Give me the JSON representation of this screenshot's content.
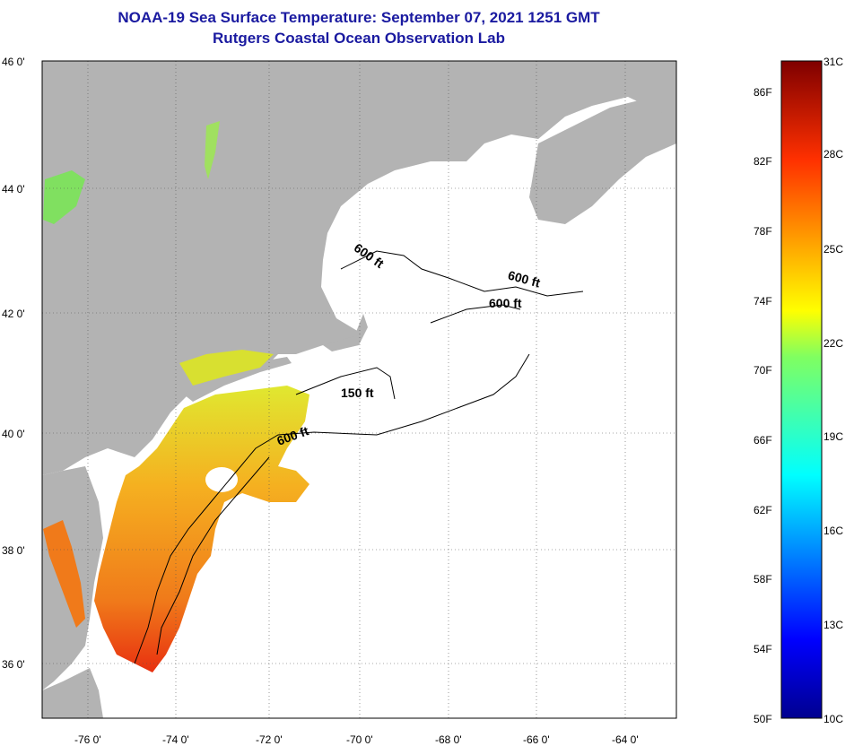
{
  "header": {
    "title": "NOAA-19 Sea Surface Temperature:  September 07, 2021 1251 GMT",
    "subtitle": "Rutgers Coastal Ocean Observation Lab"
  },
  "axes": {
    "latitude_labels": [
      "46 0'",
      "44 0'",
      "42 0'",
      "40 0'",
      "38 0'",
      "36 0'"
    ],
    "longitude_labels": [
      "-76 0'",
      "-74 0'",
      "-72 0'",
      "-70 0'",
      "-68 0'",
      "-66 0'",
      "-64 0'"
    ]
  },
  "colorbar": {
    "fahrenheit_labels": [
      "86F",
      "82F",
      "78F",
      "74F",
      "70F",
      "66F",
      "62F",
      "58F",
      "54F",
      "50F"
    ],
    "celsius_labels": [
      "31C",
      "28C",
      "25C",
      "22C",
      "19C",
      "16C",
      "13C",
      "10C"
    ]
  },
  "contours": {
    "label_600_a": "600 ft",
    "label_600_b": "600 ft",
    "label_600_c": "600 ft",
    "label_150": "150 ft",
    "label_600_d": "600 ft"
  },
  "colors": {
    "land": "#b3b3b3",
    "ocean": "#ffffff",
    "title": "#1a1aa0",
    "sst_warm": "#f07a1a",
    "sst_hot": "#e83010",
    "sst_mid": "#f5b020",
    "sst_cool": "#c8e030"
  }
}
